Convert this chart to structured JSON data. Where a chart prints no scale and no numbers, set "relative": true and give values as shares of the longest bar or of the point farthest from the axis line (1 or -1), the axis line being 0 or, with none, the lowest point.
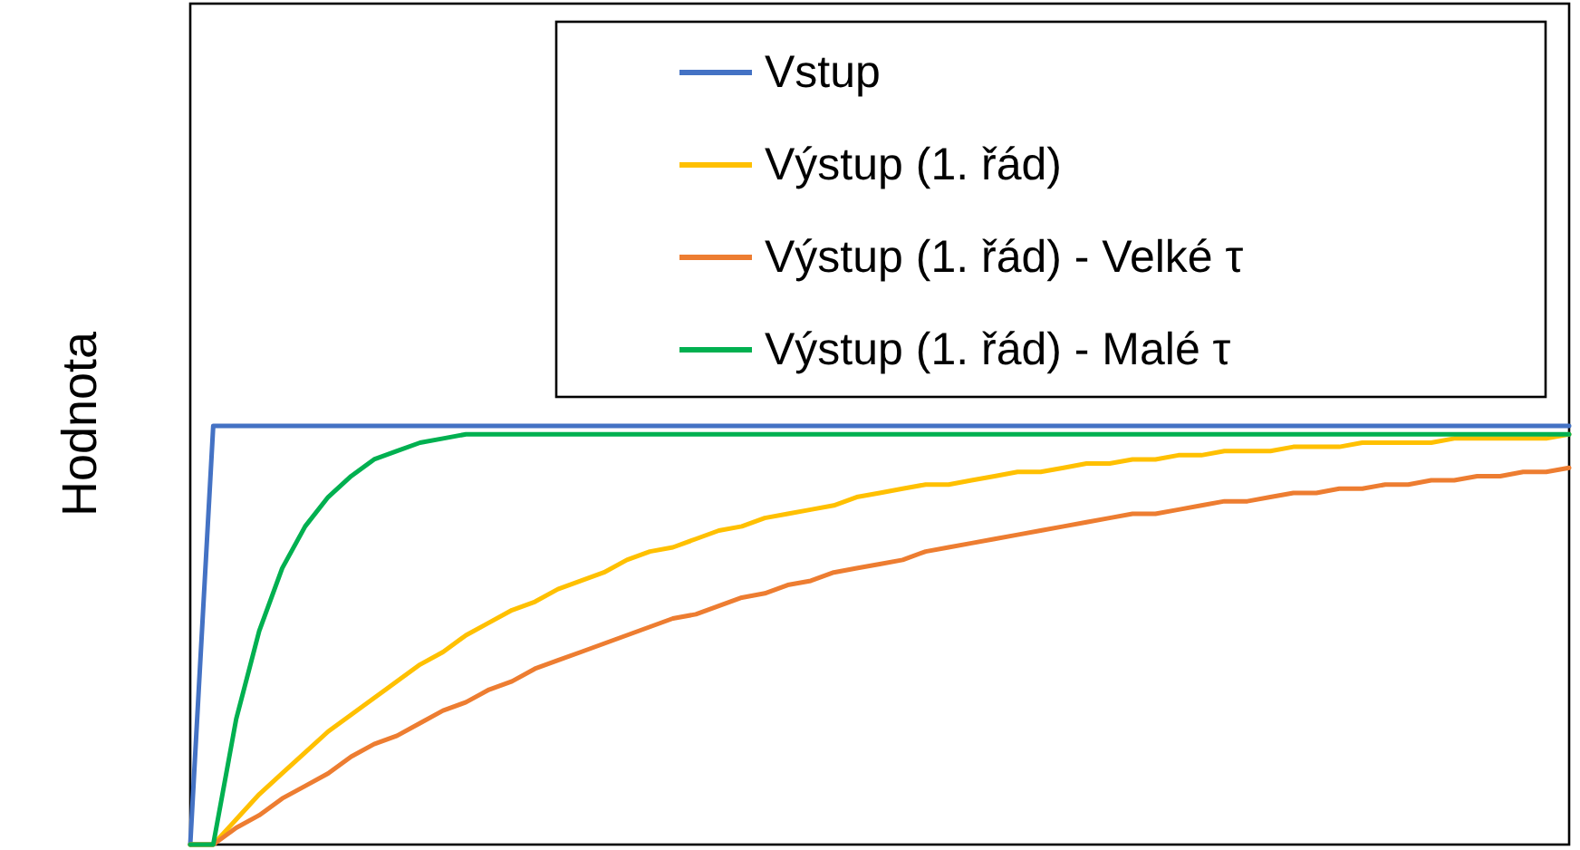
{
  "chart_data": {
    "type": "line",
    "relative": true,
    "ylabel": "Hodnota",
    "legend": "top right",
    "marker": "none",
    "line_style": "solid",
    "categories": [
      null,
      null,
      null,
      null,
      null,
      null,
      null,
      null,
      null,
      null,
      null,
      null,
      null,
      null,
      null,
      null,
      null,
      null,
      null,
      null,
      null,
      null,
      null,
      null,
      null,
      null,
      null,
      null,
      null,
      null,
      null,
      null,
      null,
      null,
      null,
      null,
      null,
      null,
      null,
      null,
      null,
      null,
      null,
      null,
      null,
      null,
      null,
      null,
      null,
      null,
      null,
      null,
      null,
      null,
      null,
      null,
      null,
      null,
      null,
      null,
      null
    ],
    "series": [
      {
        "name": "Vstup",
        "color": "#4472c4",
        "values": [
          0,
          1,
          1,
          1,
          1,
          1,
          1,
          1,
          1,
          1,
          1,
          1,
          1,
          1,
          1,
          1,
          1,
          1,
          1,
          1,
          1,
          1,
          1,
          1,
          1,
          1,
          1,
          1,
          1,
          1,
          1,
          1,
          1,
          1,
          1,
          1,
          1,
          1,
          1,
          1,
          1,
          1,
          1,
          1,
          1,
          1,
          1,
          1,
          1,
          1,
          1,
          1,
          1,
          1,
          1,
          1,
          1,
          1,
          1,
          1,
          1
        ]
      },
      {
        "name": "Výstup (1. řád)",
        "color": "#ffc000",
        "values": [
          0,
          0,
          0.06,
          0.12,
          0.17,
          0.22,
          0.27,
          0.31,
          0.35,
          0.39,
          0.43,
          0.46,
          0.5,
          0.53,
          0.56,
          0.58,
          0.61,
          0.63,
          0.65,
          0.68,
          0.7,
          0.71,
          0.73,
          0.75,
          0.76,
          0.78,
          0.79,
          0.8,
          0.81,
          0.83,
          0.84,
          0.85,
          0.86,
          0.86,
          0.87,
          0.88,
          0.89,
          0.89,
          0.9,
          0.91,
          0.91,
          0.92,
          0.92,
          0.93,
          0.93,
          0.94,
          0.94,
          0.94,
          0.95,
          0.95,
          0.95,
          0.96,
          0.96,
          0.96,
          0.96,
          0.97,
          0.97,
          0.97,
          0.97,
          0.97,
          0.98
        ]
      },
      {
        "name": "Výstup (1. řád) - Velké τ",
        "color": "#ed7d31",
        "values": [
          0,
          0,
          0.04,
          0.07,
          0.11,
          0.14,
          0.17,
          0.21,
          0.24,
          0.26,
          0.29,
          0.32,
          0.34,
          0.37,
          0.39,
          0.42,
          0.44,
          0.46,
          0.48,
          0.5,
          0.52,
          0.54,
          0.55,
          0.57,
          0.59,
          0.6,
          0.62,
          0.63,
          0.65,
          0.66,
          0.67,
          0.68,
          0.7,
          0.71,
          0.72,
          0.73,
          0.74,
          0.75,
          0.76,
          0.77,
          0.78,
          0.79,
          0.79,
          0.8,
          0.81,
          0.82,
          0.82,
          0.83,
          0.84,
          0.84,
          0.85,
          0.85,
          0.86,
          0.86,
          0.87,
          0.87,
          0.88,
          0.88,
          0.89,
          0.89,
          0.9
        ]
      },
      {
        "name": "Výstup (1. řád) - Malé τ",
        "color": "#00b050",
        "values": [
          0,
          0,
          0.3,
          0.51,
          0.66,
          0.76,
          0.83,
          0.88,
          0.92,
          0.94,
          0.96,
          0.97,
          0.98,
          0.98,
          0.98,
          0.98,
          0.98,
          0.98,
          0.98,
          0.98,
          0.98,
          0.98,
          0.98,
          0.98,
          0.98,
          0.98,
          0.98,
          0.98,
          0.98,
          0.98,
          0.98,
          0.98,
          0.98,
          0.98,
          0.98,
          0.98,
          0.98,
          0.98,
          0.98,
          0.98,
          0.98,
          0.98,
          0.98,
          0.98,
          0.98,
          0.98,
          0.98,
          0.98,
          0.98,
          0.98,
          0.98,
          0.98,
          0.98,
          0.98,
          0.98,
          0.98,
          0.98,
          0.98,
          0.98,
          0.98,
          0.98
        ]
      }
    ]
  }
}
